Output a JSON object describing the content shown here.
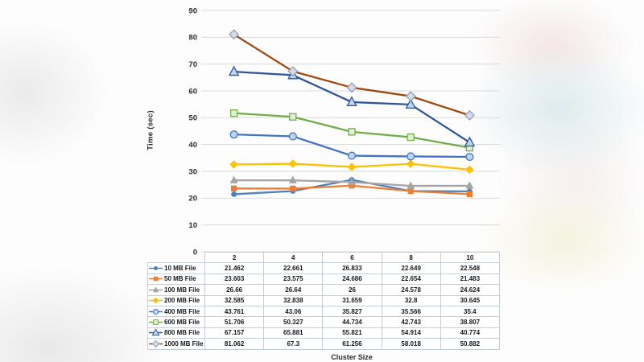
{
  "style": {
    "page_background": "#fdfdfd",
    "grid_color": "#d9d9d9",
    "axis_text_color": "#2b2b2b",
    "table_border_color": "#c3cdd9",
    "table_text_color": "#15181e"
  },
  "chart_data": {
    "type": "line",
    "title": "",
    "xlabel": "Cluster Size",
    "ylabel": "Time (sec)",
    "x": [
      2,
      4,
      6,
      8,
      10
    ],
    "ylim": [
      0,
      90
    ],
    "yticks": [
      0,
      10,
      20,
      30,
      40,
      50,
      60,
      70,
      80,
      90
    ],
    "grid": true,
    "legend_position": "data-table-left-column",
    "series": [
      {
        "name": "10 MB File",
        "color": "#4F81BD",
        "marker": "circle",
        "marker_size": 5.6,
        "marker_fill": "#4F81BD",
        "marker_stroke": "#4F81BD",
        "values": [
          21.462,
          22.661,
          26.833,
          22.649,
          22.548
        ]
      },
      {
        "name": "50 MB File",
        "color": "#ED7D31",
        "marker": "square",
        "marker_size": 6,
        "marker_fill": "#ED7D31",
        "marker_stroke": "#ED7D31",
        "values": [
          23.603,
          23.575,
          24.686,
          22.654,
          21.483
        ]
      },
      {
        "name": "100 MB File",
        "color": "#A5A5A5",
        "marker": "triangle",
        "marker_size": 7,
        "marker_fill": "#A5A5A5",
        "marker_stroke": "#A5A5A5",
        "values": [
          26.66,
          26.64,
          26,
          24.578,
          24.624
        ]
      },
      {
        "name": "200 MB File",
        "color": "#FFC000",
        "marker": "diamond",
        "marker_size": 7,
        "marker_fill": "#FFC000",
        "marker_stroke": "#FFC000",
        "values": [
          32.585,
          32.838,
          31.659,
          32.8,
          30.645
        ]
      },
      {
        "name": "400 MB File",
        "color": "#4472C4",
        "marker": "circle",
        "marker_size": 8.8,
        "marker_fill": "#BDD7EE",
        "marker_stroke": "#4472C4",
        "values": [
          43.761,
          43.06,
          35.827,
          35.566,
          35.4
        ]
      },
      {
        "name": "600 MB File",
        "color": "#70AD47",
        "marker": "square",
        "marker_size": 8,
        "marker_fill": "#E2EFDA",
        "marker_stroke": "#70AD47",
        "values": [
          51.706,
          50.327,
          44.734,
          42.743,
          38.807
        ]
      },
      {
        "name": "800 MB File",
        "color": "#2F5597",
        "marker": "triangle",
        "marker_size": 10,
        "marker_fill": "#BDD7EE",
        "marker_stroke": "#2F5597",
        "values": [
          67.157,
          65.881,
          55.821,
          54.914,
          40.774
        ]
      },
      {
        "name": "1000 MB File",
        "color": "#9E480E",
        "marker": "diamond",
        "marker_size": 9,
        "marker_fill": "#D6DCE5",
        "marker_stroke": "#90A0B7",
        "values": [
          81.062,
          67.3,
          61.256,
          58.018,
          50.882
        ]
      }
    ]
  },
  "table": {
    "corner_label": "",
    "column_headers": [
      "2",
      "4",
      "6",
      "8",
      "10"
    ],
    "row_labels": [
      "10 MB File",
      "50 MB File",
      "100 MB File",
      "200 MB File",
      "400 MB File",
      "600 MB File",
      "800 MB File",
      "1000 MB File"
    ],
    "cells": [
      [
        "21.462",
        "22.661",
        "26.833",
        "22.649",
        "22.548"
      ],
      [
        "23.603",
        "23.575",
        "24.686",
        "22.654",
        "21.483"
      ],
      [
        "26.66",
        "26.64",
        "26",
        "24.578",
        "24.624"
      ],
      [
        "32.585",
        "32.838",
        "31.659",
        "32.8",
        "30.645"
      ],
      [
        "43.761",
        "43.06",
        "35.827",
        "35.566",
        "35.4"
      ],
      [
        "51.706",
        "50.327",
        "44.734",
        "42.743",
        "38.807"
      ],
      [
        "67.157",
        "65.881",
        "55.821",
        "54.914",
        "40.774"
      ],
      [
        "81.062",
        "67.3",
        "61.256",
        "58.018",
        "50.882"
      ]
    ]
  }
}
